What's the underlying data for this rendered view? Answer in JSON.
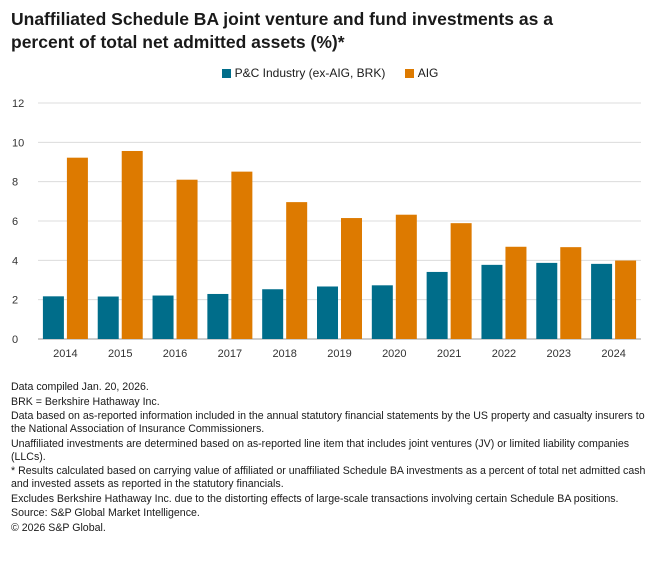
{
  "title": "Unaffiliated Schedule BA joint venture and fund investments as a percent of total net admitted assets (%)*",
  "chart_data": {
    "type": "bar",
    "categories": [
      "2014",
      "2015",
      "2016",
      "2017",
      "2018",
      "2019",
      "2020",
      "2021",
      "2022",
      "2023",
      "2024"
    ],
    "series": [
      {
        "name": "P&C Industry (ex-AIG, BRK)",
        "color": "#006d8a",
        "values": [
          2.17,
          2.16,
          2.21,
          2.29,
          2.53,
          2.67,
          2.73,
          3.41,
          3.77,
          3.87,
          3.82
        ]
      },
      {
        "name": "AIG",
        "color": "#dd7a00",
        "values": [
          9.22,
          9.56,
          8.1,
          8.51,
          6.96,
          6.15,
          6.32,
          5.89,
          4.69,
          4.67,
          3.99
        ]
      }
    ],
    "ylim": [
      0,
      12
    ],
    "yticks": [
      "0",
      "2",
      "4",
      "6",
      "8",
      "10",
      "12"
    ],
    "grid": true,
    "legend": "top-center"
  },
  "notes": [
    "Data compiled Jan. 20, 2026.",
    "BRK = Berkshire Hathaway Inc.",
    "Data based on as-reported information included in the annual statutory financial statements by the US property and casualty insurers to the National Association of Insurance Commissioners.",
    "Unaffiliated investments are determined based on as-reported line item that includes joint ventures (JV) or limited liability companies (LLCs).",
    "* Results calculated based on carrying value of affiliated or unaffiliated Schedule BA investments as a percent of total net admitted cash and invested assets as reported in the statutory financials.",
    "Excludes Berkshire Hathaway Inc. due to the distorting effects of large-scale transactions involving certain Schedule BA positions.",
    "Source: S&P Global Market Intelligence.",
    "© 2026 S&P Global."
  ]
}
